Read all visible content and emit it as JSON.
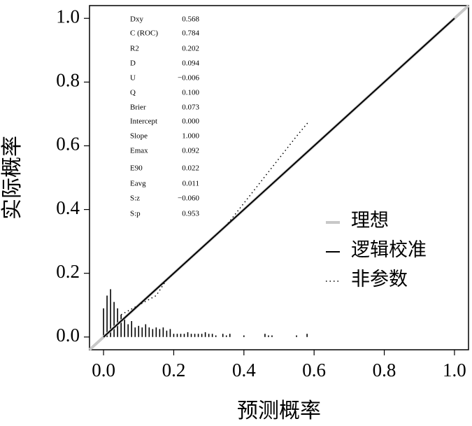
{
  "chart_data": {
    "type": "calibration",
    "x_label": "预测概率",
    "y_label": "实际概率",
    "xlim": [
      -0.04,
      1.04
    ],
    "ylim": [
      -0.04,
      1.04
    ],
    "xticks": [
      {
        "value": 0,
        "label": "0.0"
      },
      0.2,
      0.4,
      0.6,
      0.8,
      {
        "value": 1,
        "label": "1.0"
      }
    ],
    "yticks": [
      {
        "value": 0,
        "label": "0.0"
      },
      0.2,
      0.4,
      0.6,
      0.8,
      {
        "value": 1,
        "label": "1.0"
      }
    ],
    "legend": "right",
    "series": [
      {
        "name": "理想",
        "color": "#c8c8c8",
        "style": "solid",
        "width": 4,
        "x": [
          -0.04,
          1.04
        ],
        "values": [
          -0.04,
          1.04
        ]
      },
      {
        "name": "逻辑校准",
        "color": "#000000",
        "style": "solid",
        "width": 2,
        "x": [
          0,
          1
        ],
        "values": [
          0,
          1
        ]
      },
      {
        "name": "非参数",
        "color": "#000000",
        "style": "dotted",
        "width": 1.5,
        "x": [
          0.05,
          0.1,
          0.15,
          0.18,
          0.2,
          0.25,
          0.3,
          0.35,
          0.4,
          0.45,
          0.5,
          0.55,
          0.584
        ],
        "values": [
          0.07,
          0.1,
          0.13,
          0.18,
          0.2,
          0.25,
          0.3,
          0.35,
          0.42,
          0.49,
          0.56,
          0.63,
          0.675
        ]
      }
    ],
    "spikes": {
      "color": "#000000",
      "x": [
        0,
        0.01,
        0.02,
        0.03,
        0.04,
        0.05,
        0.06,
        0.07,
        0.08,
        0.09,
        0.1,
        0.11,
        0.12,
        0.13,
        0.14,
        0.15,
        0.16,
        0.17,
        0.18,
        0.19,
        0.2,
        0.21,
        0.22,
        0.23,
        0.24,
        0.25,
        0.26,
        0.27,
        0.28,
        0.29,
        0.3,
        0.31,
        0.32,
        0.34,
        0.35,
        0.36,
        0.4,
        0.46,
        0.47,
        0.48,
        0.55,
        0.58
      ],
      "values": [
        0.09,
        0.13,
        0.15,
        0.11,
        0.09,
        0.07,
        0.06,
        0.04,
        0.05,
        0.03,
        0.035,
        0.03,
        0.04,
        0.03,
        0.025,
        0.03,
        0.025,
        0.03,
        0.02,
        0.025,
        0.01,
        0.01,
        0.01,
        0.01,
        0.015,
        0.01,
        0.01,
        0.01,
        0.01,
        0.015,
        0.01,
        0.01,
        0.005,
        0.01,
        0.005,
        0.01,
        0.005,
        0.01,
        0.005,
        0.005,
        0.005,
        0.01
      ]
    },
    "stats": [
      {
        "label": "Dxy",
        "value": "0.568"
      },
      {
        "label": "C (ROC)",
        "value": "0.784"
      },
      {
        "label": "R2",
        "value": "0.202"
      },
      {
        "label": "D",
        "value": "0.094"
      },
      {
        "label": "U",
        "value": "−0.006"
      },
      {
        "label": "Q",
        "value": "0.100"
      },
      {
        "label": "Brier",
        "value": "0.073"
      },
      {
        "label": "Intercept",
        "value": "0.000"
      },
      {
        "label": "Slope",
        "value": "1.000"
      },
      {
        "label": "Emax",
        "value": "0.092"
      },
      {
        "label": "E90",
        "value": "0.022"
      },
      {
        "label": "Eavg",
        "value": "0.011"
      },
      {
        "label": "S:z",
        "value": "−0.060"
      },
      {
        "label": "S:p",
        "value": "0.953"
      }
    ]
  }
}
